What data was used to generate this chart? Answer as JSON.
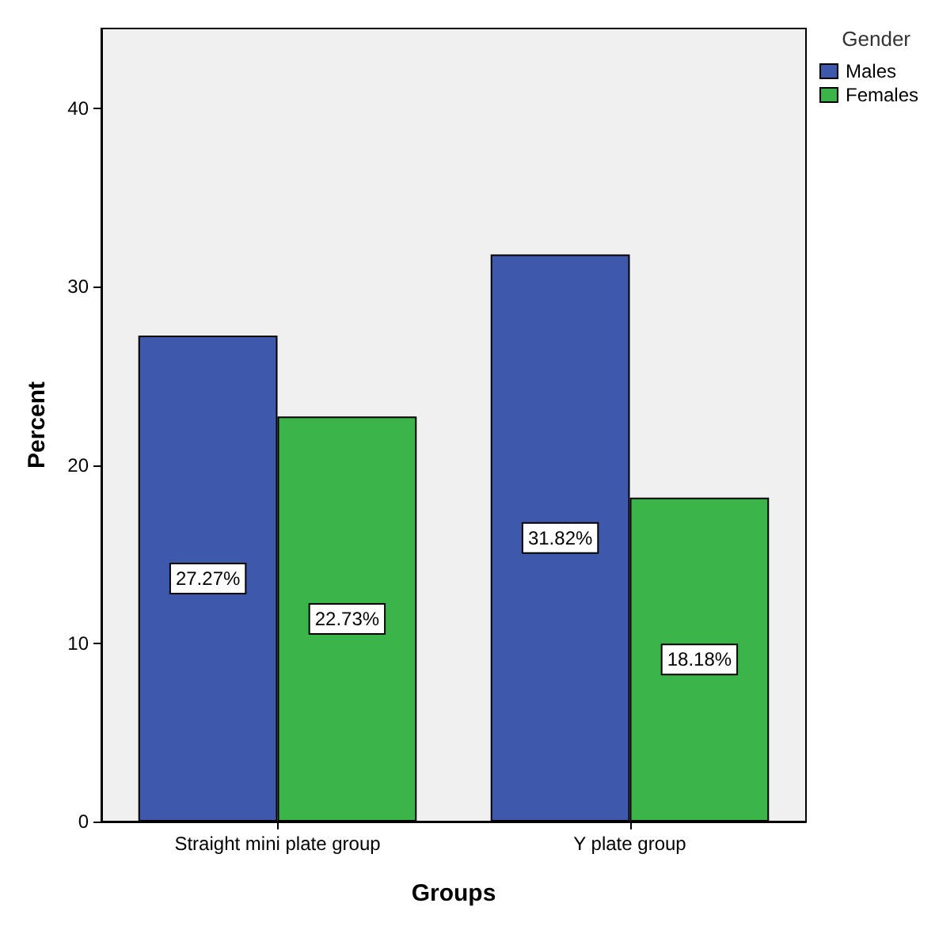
{
  "chart_data": {
    "type": "bar",
    "xlabel": "Groups",
    "ylabel": "Percent",
    "legend_title": "Gender",
    "categories": [
      "Straight mini plate group",
      "Y plate group"
    ],
    "series": [
      {
        "name": "Males",
        "color": "#3e58ac",
        "values": [
          27.27,
          31.82
        ],
        "value_labels": [
          "27.27%",
          "31.82%"
        ]
      },
      {
        "name": "Females",
        "color": "#3bb54a",
        "values": [
          22.73,
          18.18
        ],
        "value_labels": [
          "22.73%",
          "18.18%"
        ]
      }
    ],
    "ylim": [
      0,
      44.5
    ],
    "yticks": [
      0,
      10,
      20,
      30,
      40
    ],
    "grid": false,
    "legend": "top right"
  }
}
